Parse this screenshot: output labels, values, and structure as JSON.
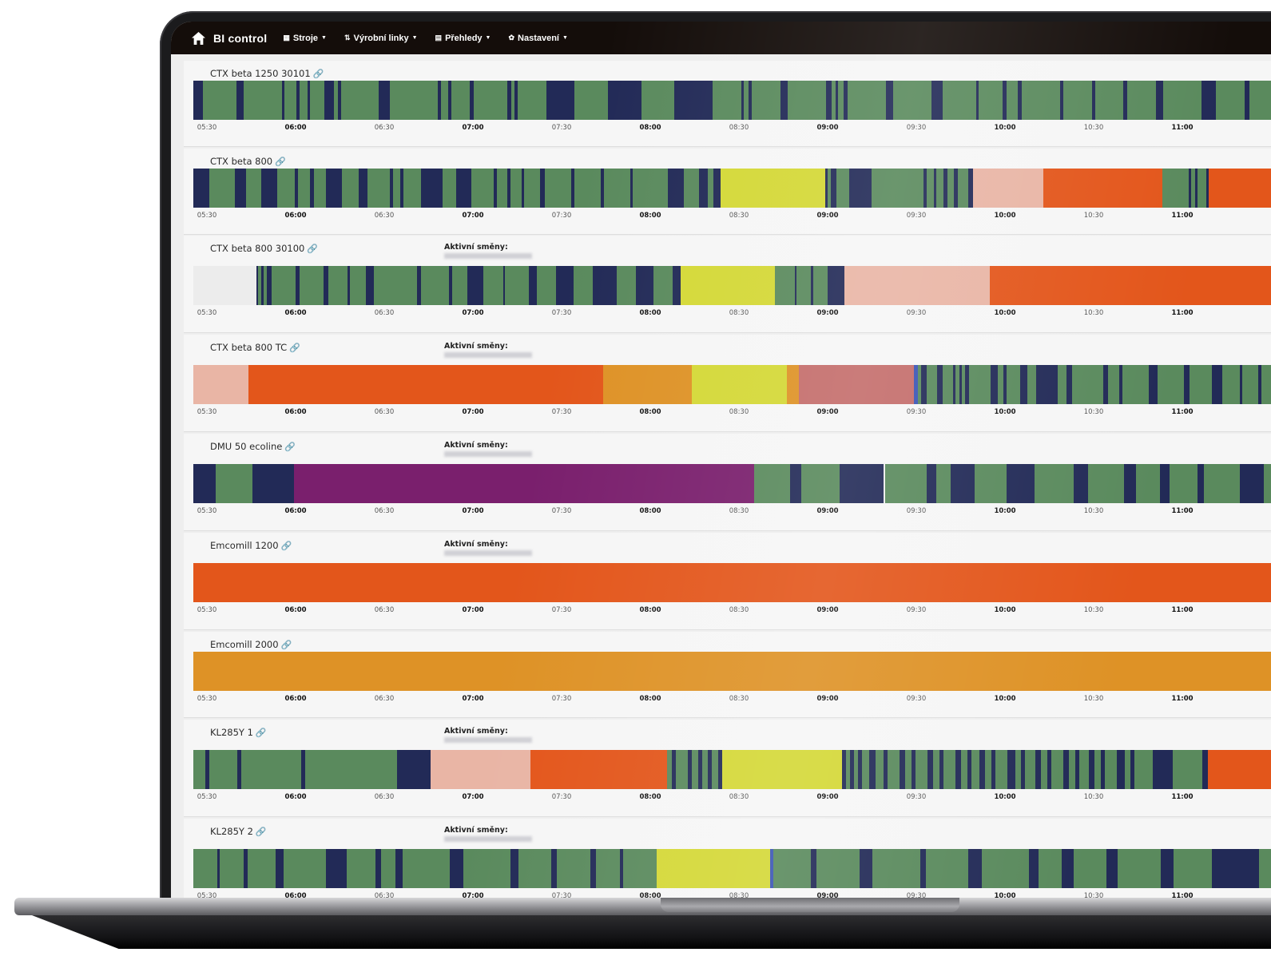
{
  "navbar": {
    "brand": "BI control",
    "items": [
      {
        "label": "Stroje",
        "icon": "grid-icon"
      },
      {
        "label": "Výrobní linky",
        "icon": "flow-icon"
      },
      {
        "label": "Přehledy",
        "icon": "list-icon"
      },
      {
        "label": "Nastavení",
        "icon": "gear-icon"
      }
    ]
  },
  "status_colors": {
    "G": "#5a8a5d",
    "N": "#222a57",
    "Y": "#d4d836",
    "P": "#e9b5a5",
    "O": "#e3561b",
    "A": "#de9226",
    "R": "#c46d6b",
    "V": "#7a1f6d",
    "E": "#ececec",
    "B": "#3a55b5"
  },
  "timeline": {
    "ticks": [
      "05:30",
      "06:00",
      "06:30",
      "07:00",
      "07:30",
      "08:00",
      "08:30",
      "09:00",
      "09:30",
      "10:00",
      "10:30",
      "11:00"
    ],
    "major_ticks": [
      "06:00",
      "07:00",
      "08:00",
      "09:00",
      "10:00",
      "11:00"
    ]
  },
  "machines": [
    {
      "name": "CTX beta 1250 30101",
      "shift_label": "",
      "segments": "N10 G35 N8 G40 N3 G12 N4 G8 N3 G15 N10 G4 N3 G40 N12 G50 N3 G8 N3 G20 N4 G35 N4 G4 N3 G30 N30 G35 N35 G35 N40 G30 N3 G5 N3 G30 N8 G40 N6 G4 N3 G6 N4 G40 N8 G40 N12 G35 N3 G25 N4 G12 N4 G40 N4 G30 N3 G30 N4 G30 N8 G40 N15 G30 N5 G40"
    },
    {
      "name": "CTX beta 800",
      "shift_label": "",
      "segments": "N18 G30 N12 G18 N18 G20 N4 G14 N4 G14 N18 G20 N10 G25 N4 G8 N4 G20 N25 G15 N18 G25 N4 G12 N4 G12 N3 G18 N6 G30 N4 G30 N4 G30 N3 G40 N18 G18 N10 G6 N8 Y120 N3 G4 N6 G15 N25 G60 N4 G8 N3 G8 N4 G8 N4 G12 N6 P80 O137 G30 N3 G4 N3 G10 N3 O90"
    },
    {
      "name": "CTX beta 800 30100",
      "shift_label": "Aktivní směny:",
      "segments": "E80 N3 G4 N3 G4 N6 G30 N6 G30 N6 G25 N3 G20 N10 G55 N6 G35 N4 G20 N20 G25 N3 G30 N10 G25 N22 G25 N30 G25 N22 G25 N10 Y120 G25 N3 G18 N3 G18 N22 P185 O380"
    },
    {
      "name": "CTX beta 800 TC",
      "shift_label": "Aktivní směny:",
      "segments": "P62 O402 A100 Y108 A14 R130 B4 G4 N6 G12 N6 G12 N3 G4 N3 G4 N4 G25 N8 G6 N4 G15 N8 G10 N25 G10 N6 G35 N6 G12 N4 G30 N10 G30 N6 G25 N12 G20 N3 G18 N3 G30"
    },
    {
      "name": "DMU 50 ecoline",
      "shift_label": "Aktivní směny:",
      "segments": "N28 G46 N52 V578 G45 N14 G48 N55 E2 G52 N12 G18 N30 G40 N35 G50 N18 G45 N15 G30 N12 G35 N8 G45 N30 G30"
    },
    {
      "name": "Emcomill 1200",
      "shift_label": "Aktivní směny:",
      "segments": "O1370"
    },
    {
      "name": "Emcomill 2000",
      "shift_label": "",
      "segments": "A1370"
    },
    {
      "name": "KL285Y 1",
      "shift_label": "Aktivní směny:",
      "segments": "G12 N4 G28 N4 G60 N4 G92 N34 P100 O137 G5 N4 G12 N4 G6 N4 G6 N4 G6 N4 Y120 N4 G4 N4 G4 N4 G8 N6 G8 N4 G12 N6 G6 N4 G12 N6 G6 N4 G12 N6 G6 N4 G8 N6 G6 N4 G12 N8 G6 N4 G10 N6 G6 N4 G12 N6 G6 N4 G10 N6 G6 N4 G12 N8 G6 N4 G18 N20 G30 N5 O80"
    },
    {
      "name": "KL285Y 2",
      "shift_label": "Aktivní směny:",
      "segments": "G25 N3 G25 N4 G30 N8 G45 N22 G30 N6 G15 N8 G50 N14 G50 N8 G35 N6 G35 N6 G25 N4 G35 Y120 B3 G40 N6 G45 N14 G50 N6 G45 N14 G50 N10 G25 N12 G35 N12 G45 N14 G40 N50 G30"
    }
  ]
}
